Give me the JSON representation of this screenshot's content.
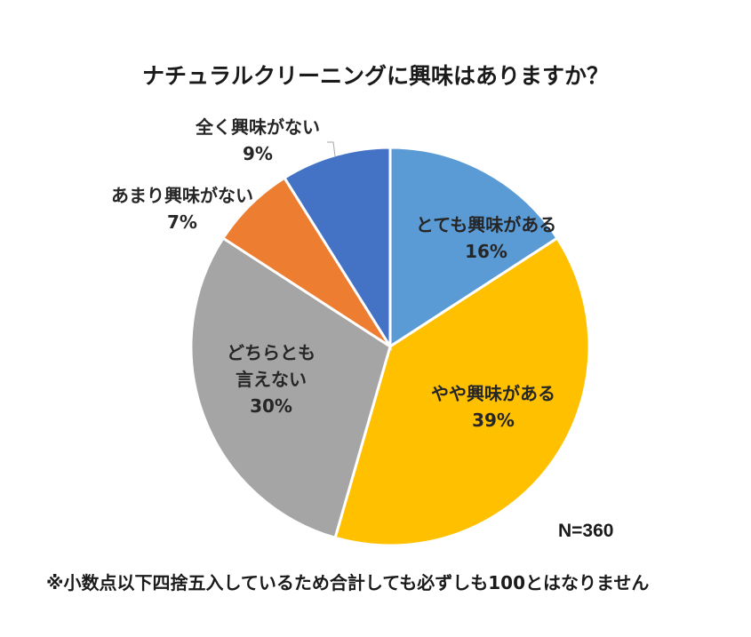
{
  "chart_data": {
    "type": "pie",
    "title": "ナチュラルクリーニングに興味はありますか？",
    "categories": [
      "とても興味がある",
      "やや興味がある",
      "どちらとも言えない",
      "あまり興味がない",
      "全く興味がない"
    ],
    "values": [
      16,
      39,
      30,
      7,
      9
    ],
    "unit": "%",
    "colors": [
      "#5B9BD5",
      "#FFC000",
      "#A5A5A5",
      "#ED7D31",
      "#4472C4"
    ],
    "start_angle": "12 o'clock, clockwise",
    "sample_size": "N=360",
    "note": "※小数点以下四捨五入しているため合計しても必ずしも100とはなりません"
  },
  "title": "ナチュラルクリーニングに興味はありますか？",
  "labels": {
    "very": {
      "name": "とても興味がある",
      "pct": "16%"
    },
    "somewhat": {
      "name": "やや興味がある",
      "pct": "39%"
    },
    "neutral": {
      "name1": "どちらとも",
      "name2": "言えない",
      "pct": "30%"
    },
    "not_much": {
      "name": "あまり興味がない",
      "pct": "7%"
    },
    "not_at_all": {
      "name": "全く興味がない",
      "pct": "9%"
    }
  },
  "sample_size": "N=360",
  "footnote": "※小数点以下四捨五入しているため合計しても必ずしも100とはなりません"
}
